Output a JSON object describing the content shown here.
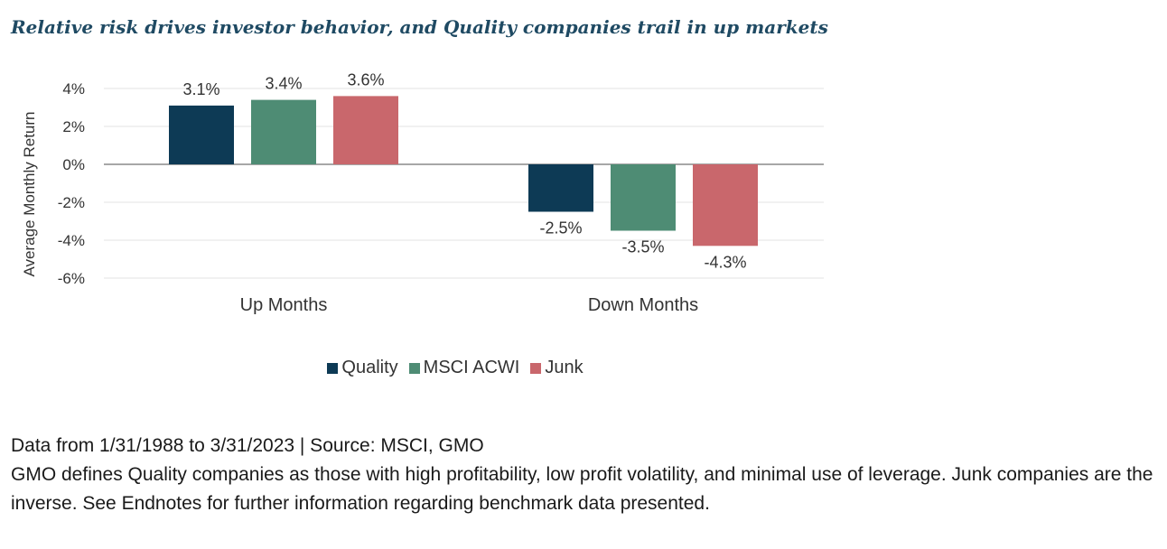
{
  "title": "Relative risk drives investor behavior, and Quality companies trail in up markets",
  "chart_data": {
    "type": "bar",
    "categories": [
      "Up Months",
      "Down Months"
    ],
    "series": [
      {
        "name": "Quality",
        "values": [
          3.1,
          -2.5
        ],
        "color": "#0d3a55"
      },
      {
        "name": "MSCI ACWI",
        "values": [
          3.4,
          -3.5
        ],
        "color": "#4e8c74"
      },
      {
        "name": "Junk",
        "values": [
          3.6,
          -4.3
        ],
        "color": "#c9676c"
      }
    ],
    "data_labels": [
      [
        "3.1%",
        "-2.5%"
      ],
      [
        "3.4%",
        "-3.5%"
      ],
      [
        "3.6%",
        "-4.3%"
      ]
    ],
    "ylabel": "Average Monthly Return",
    "ylim": [
      -6,
      4
    ],
    "yticks": [
      4,
      2,
      0,
      -2,
      -4,
      -6
    ],
    "ytick_labels": [
      "4%",
      "2%",
      "0%",
      "-2%",
      "-4%",
      "-6%"
    ],
    "grid": true,
    "legend_position": "bottom"
  },
  "footer": {
    "source": "Data from 1/31/1988 to 3/31/2023 | Source: MSCI, GMO",
    "note": "GMO defines Quality companies as those with high profitability, low profit volatility, and minimal use of leverage. Junk companies are the inverse. See Endnotes for further information regarding benchmark data presented."
  }
}
